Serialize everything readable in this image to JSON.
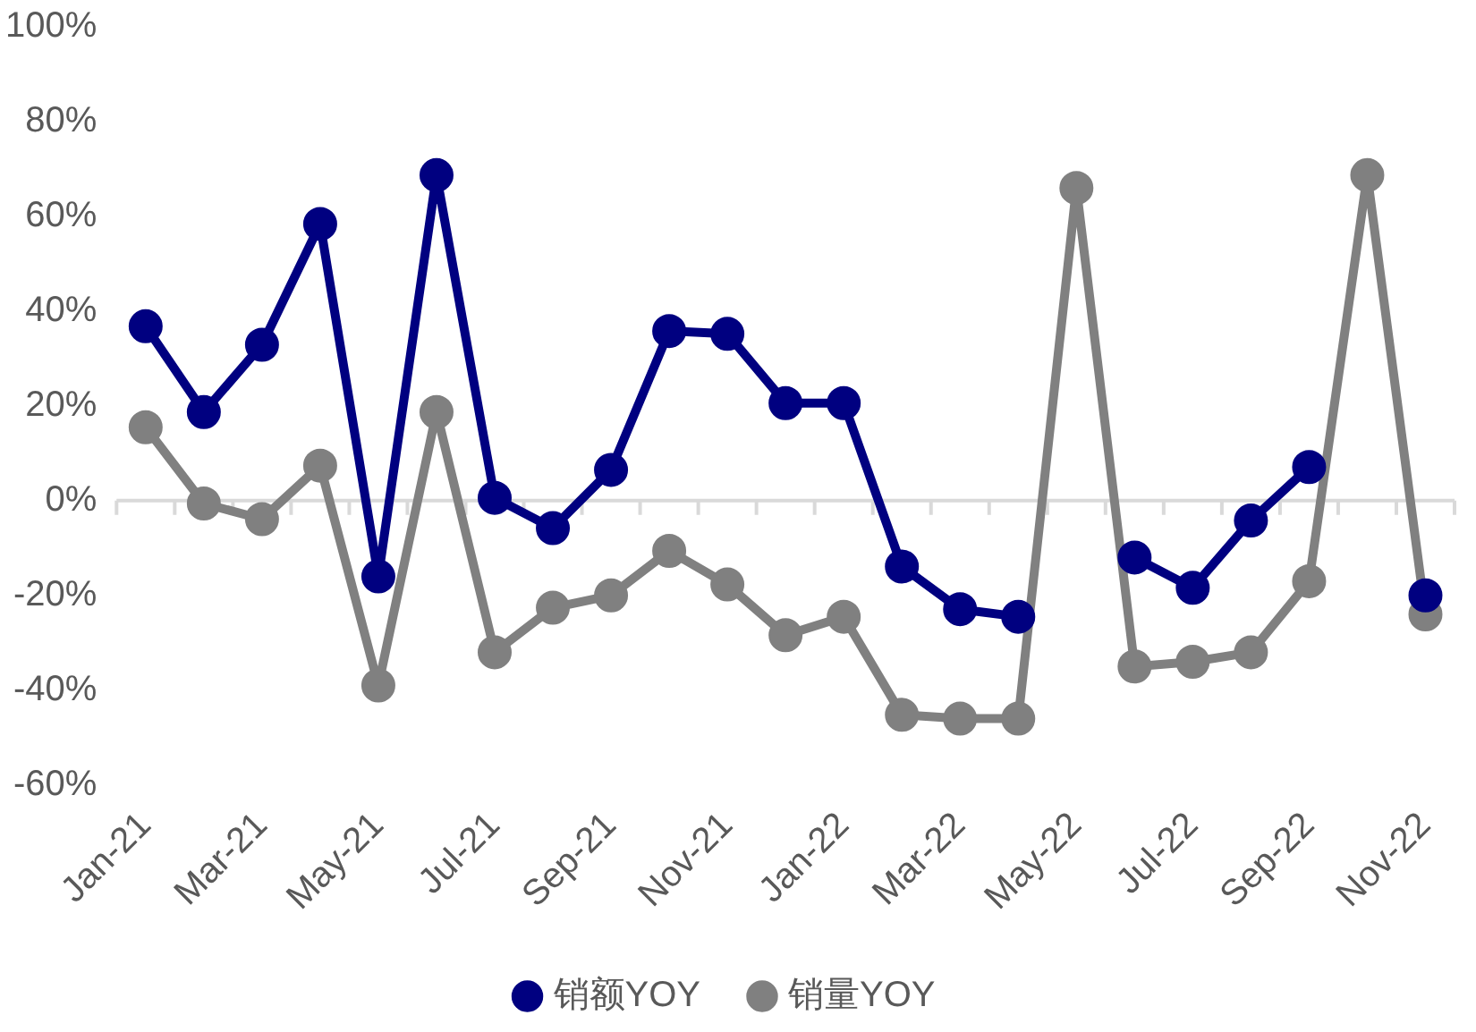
{
  "chart_data": {
    "type": "line",
    "categories": [
      "Jan-21",
      null,
      "Mar-21",
      null,
      "May-21",
      null,
      "Jul-21",
      null,
      "Sep-21",
      null,
      "Nov-21",
      null,
      "Jan-22",
      null,
      "Mar-22",
      null,
      "May-22",
      null,
      "Jul-22",
      null,
      "Sep-22",
      null,
      "Nov-22"
    ],
    "series": [
      {
        "name": "销额YOY",
        "color": "#000080",
        "values": [
          36.8,
          18.7,
          32.9,
          58.4,
          -16,
          68.7,
          0.6,
          -5.8,
          6.5,
          35.8,
          35.2,
          20.6,
          20.6,
          -13.9,
          -22.9,
          -24.5,
          null,
          -12,
          -18.4,
          -4.2,
          7.1,
          null,
          -20
        ]
      },
      {
        "name": "销量YOY",
        "color": "#808080",
        "values": [
          15.5,
          -0.6,
          -3.9,
          7.4,
          -39,
          18.7,
          -32,
          -22.6,
          -20,
          -10.6,
          -17.7,
          -28.4,
          -24.5,
          -45.2,
          -46,
          -46,
          66,
          -35,
          -34,
          -32,
          -17,
          68.7,
          -24
        ]
      }
    ],
    "ylim": [
      -60,
      100
    ],
    "yticks": [
      {
        "value": -60,
        "label": "-60%"
      },
      {
        "value": -40,
        "label": "-40%"
      },
      {
        "value": -20,
        "label": "-20%"
      },
      {
        "value": 0,
        "label": "0%"
      },
      {
        "value": 20,
        "label": "20%"
      },
      {
        "value": 40,
        "label": "40%"
      },
      {
        "value": 60,
        "label": "60%"
      },
      {
        "value": 80,
        "label": "80%"
      },
      {
        "value": 100,
        "label": "100%"
      }
    ],
    "legend": "bottom",
    "marker": "circle"
  }
}
